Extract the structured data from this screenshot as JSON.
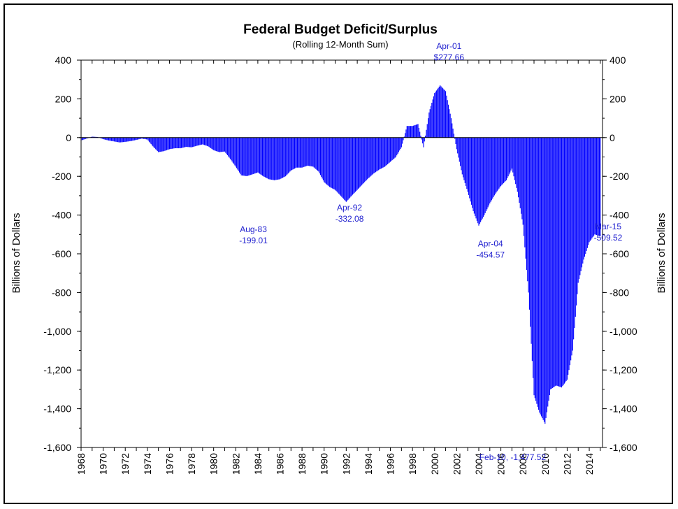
{
  "chart_data": {
    "type": "bar",
    "title": "Federal Budget Deficit/Surplus",
    "subtitle": "(Rolling 12-Month Sum)",
    "ylabel": "Billions of Dollars",
    "ylabel_right": "Billions of Dollars",
    "ylim": [
      -1600,
      400
    ],
    "yticks": [
      400,
      200,
      0,
      -200,
      -400,
      -600,
      -800,
      -1000,
      -1200,
      -1400,
      -1600
    ],
    "ytick_labels": [
      "400",
      "200",
      "0",
      "-200",
      "-400",
      "-600",
      "-800",
      "-1,000",
      "-1,200",
      "-1,400",
      "-1,600"
    ],
    "xlim": [
      1968,
      2015.2
    ],
    "xticks": [
      "1968",
      "1970",
      "1972",
      "1974",
      "1976",
      "1978",
      "1980",
      "1982",
      "1984",
      "1986",
      "1988",
      "1990",
      "1992",
      "1994",
      "1996",
      "1998",
      "2000",
      "2002",
      "2004",
      "2006",
      "2008",
      "2010",
      "2012",
      "2014"
    ],
    "bar_color": "#0000ff",
    "grid": false,
    "series": [
      {
        "x": [
          1968.0,
          1968.5,
          1969.0,
          1969.5,
          1970.0,
          1970.5,
          1971.0,
          1971.5,
          1972.0,
          1972.5,
          1973.0,
          1973.5,
          1974.0,
          1974.5,
          1975.0,
          1975.5,
          1976.0,
          1976.5,
          1977.0,
          1977.5,
          1978.0,
          1978.5,
          1979.0,
          1979.5,
          1980.0,
          1980.5,
          1981.0,
          1981.5,
          1982.0,
          1982.5,
          1983.0,
          1983.5,
          1984.0,
          1984.5,
          1985.0,
          1985.5,
          1986.0,
          1986.5,
          1987.0,
          1987.5,
          1988.0,
          1988.5,
          1989.0,
          1989.5,
          1990.0,
          1990.5,
          1991.0,
          1991.5,
          1992.0,
          1992.5,
          1993.0,
          1993.5,
          1994.0,
          1994.5,
          1995.0,
          1995.5,
          1996.0,
          1996.5,
          1997.0,
          1997.5,
          1998.0,
          1998.5,
          1999.0,
          1999.5,
          2000.0,
          2000.5,
          2001.0,
          2001.5,
          2002.0,
          2002.5,
          2003.0,
          2003.5,
          2004.0,
          2004.5,
          2005.0,
          2005.5,
          2006.0,
          2006.5,
          2007.0,
          2007.5,
          2008.0,
          2008.5,
          2009.0,
          2009.5,
          2010.0,
          2010.5,
          2011.0,
          2011.5,
          2012.0,
          2012.5,
          2013.0,
          2013.5,
          2014.0,
          2014.5,
          2015.0
        ],
        "values": [
          -15,
          -5,
          5,
          3,
          -8,
          -15,
          -20,
          -25,
          -22,
          -18,
          -12,
          -5,
          -10,
          -45,
          -75,
          -70,
          -60,
          -55,
          -55,
          -48,
          -50,
          -42,
          -35,
          -45,
          -65,
          -75,
          -72,
          -110,
          -150,
          -195,
          -199,
          -190,
          -180,
          -200,
          -215,
          -220,
          -215,
          -200,
          -170,
          -155,
          -155,
          -145,
          -150,
          -175,
          -230,
          -255,
          -270,
          -300,
          -332,
          -300,
          -270,
          -240,
          -210,
          -185,
          -165,
          -150,
          -125,
          -100,
          -50,
          60,
          60,
          70,
          -50,
          130,
          230,
          270,
          240,
          100,
          -60,
          -190,
          -280,
          -380,
          -454.57,
          -400,
          -340,
          -290,
          -250,
          -220,
          -160,
          -280,
          -450,
          -800,
          -1330,
          -1420,
          -1477.52,
          -1300,
          -1280,
          -1290,
          -1250,
          -1100,
          -750,
          -630,
          -540,
          -500,
          -509.52
        ]
      }
    ],
    "annotations": [
      {
        "label": "Aug-83",
        "value_label": "-199.01",
        "x": 1983.6,
        "y": -199.01
      },
      {
        "label": "Apr-92",
        "value_label": "-332.08",
        "x": 1992.3,
        "y": -332.08
      },
      {
        "label": "Apr-01",
        "value_label": "$277.66",
        "x": 2001.3,
        "y": 277.66
      },
      {
        "label": "Apr-04",
        "value_label": "-454.57",
        "x": 2004.3,
        "y": -454.57
      },
      {
        "label": "Feb-10, -1,477.52",
        "value_label": "",
        "x": 2010.1,
        "y": -1477.52
      },
      {
        "label": "Mar-15",
        "value_label": "-509.52",
        "x": 2015.2,
        "y": -509.52
      }
    ]
  }
}
